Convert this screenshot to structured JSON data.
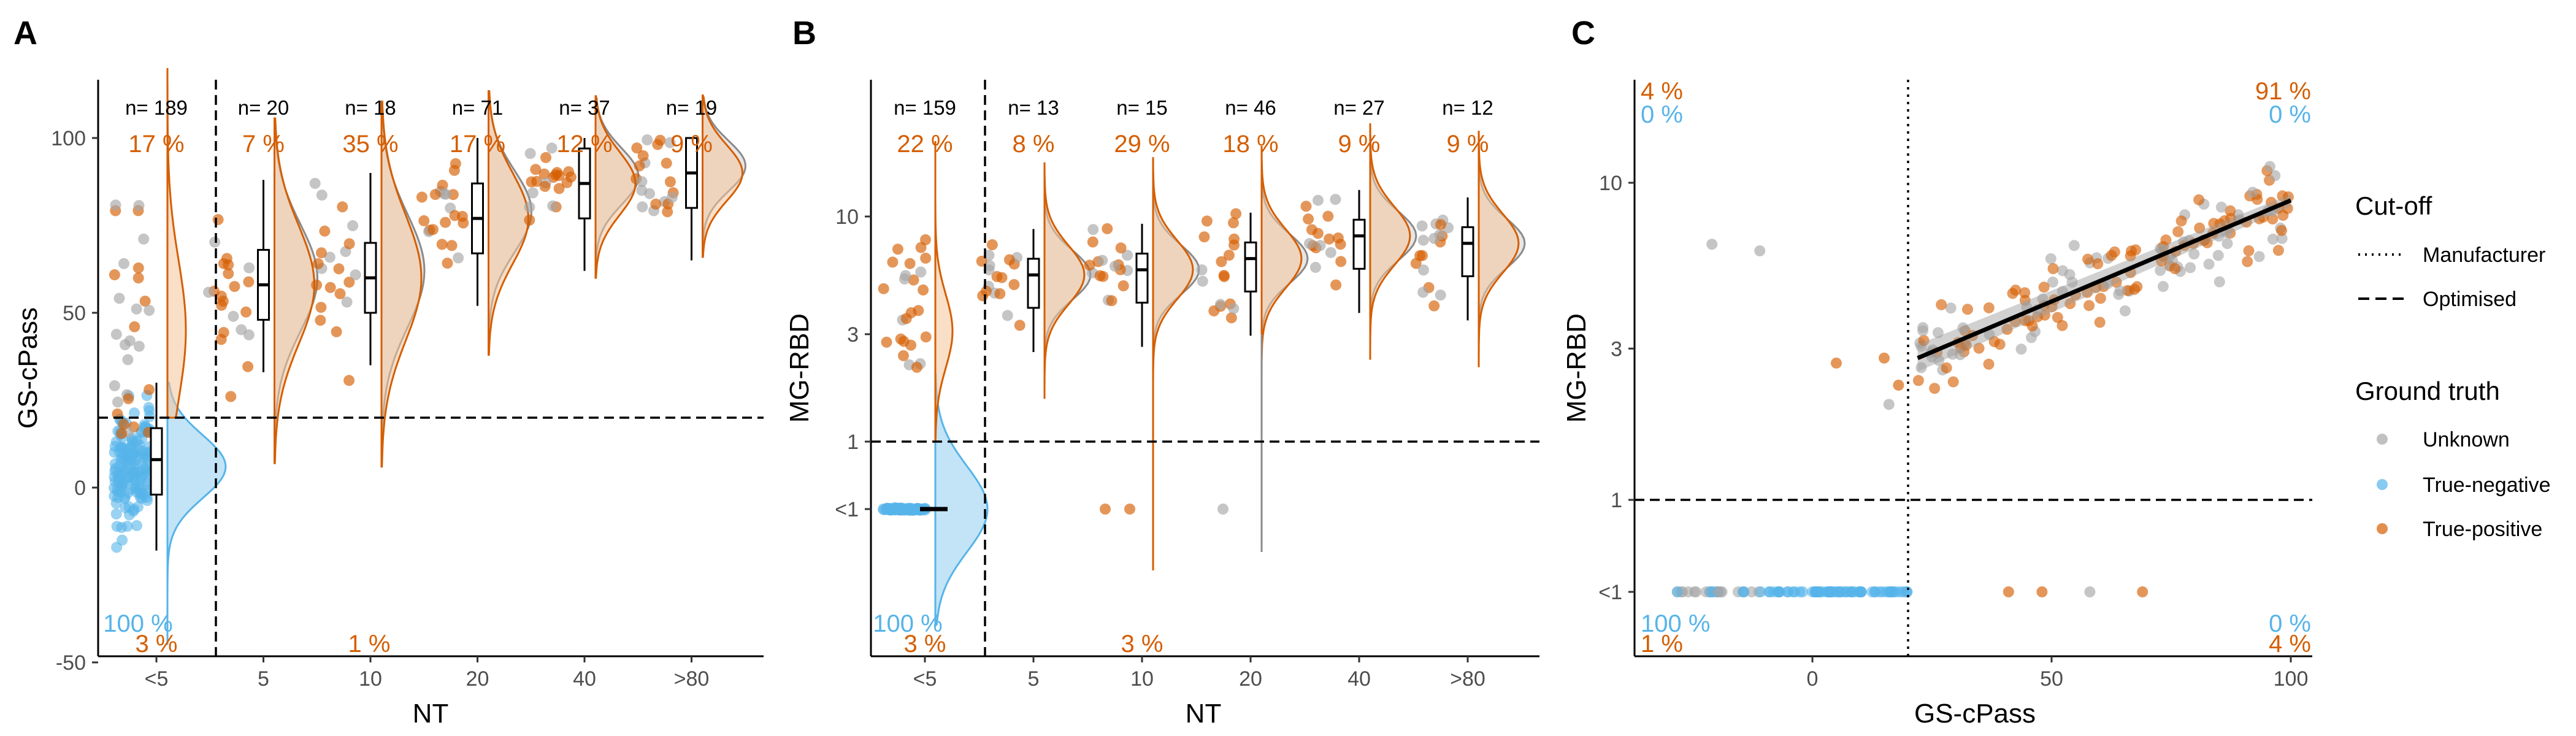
{
  "colors": {
    "unknown": "#a6a6a6",
    "true_negative": "#56b4e9",
    "true_positive": "#d55e00",
    "fill_orange": "#f4c49a",
    "fill_blue": "#a9d8f3",
    "fill_grey": "#d4d4d4"
  },
  "chart_data": [
    {
      "panel": "A",
      "type": "violin-box-scatter",
      "xlabel": "NT",
      "ylabel": "GS-cPass",
      "categories": [
        "<5",
        "5",
        "10",
        "20",
        "40",
        ">80"
      ],
      "yticks": [
        "100",
        "50",
        "0",
        "-50"
      ],
      "ylim": [
        -55,
        135
      ],
      "cutoff_optimised_y": 20,
      "cutoff_optimised_x_between": [
        "<5",
        "5"
      ],
      "n_labels": [
        "n= 189",
        "n= 20",
        "n= 18",
        "n= 71",
        "n= 37",
        "n= 19"
      ],
      "tp_percent_top": [
        "17 %",
        "7 %",
        "35 %",
        "17 %",
        "12 %",
        "9 %"
      ],
      "tn_percent_bottom": "100 %",
      "tp_percent_bottom": [
        "3 %",
        "1 %"
      ],
      "median": [
        8,
        58,
        60,
        77,
        87,
        90
      ]
    },
    {
      "panel": "B",
      "type": "violin-box-scatter",
      "xlabel": "NT",
      "ylabel": "MG-RBD",
      "categories": [
        "<5",
        "5",
        "10",
        "20",
        "40",
        ">80"
      ],
      "yticks": [
        "10",
        "3",
        "1",
        "<1"
      ],
      "yscale": "log",
      "cutoff_optimised_y": 1,
      "cutoff_optimised_x_between": [
        "<5",
        "5"
      ],
      "n_labels": [
        "n= 159",
        "n= 13",
        "n= 15",
        "n= 46",
        "n= 27",
        "n= 12"
      ],
      "tp_percent_top": [
        "22 %",
        "8 %",
        "29 %",
        "18 %",
        "9 %",
        "9 %"
      ],
      "tn_percent_bottom": "100 %",
      "tp_percent_bottom": [
        "3 %",
        "3 %"
      ],
      "median": [
        0.4,
        5.5,
        5.8,
        6.5,
        8.2,
        7.6
      ]
    },
    {
      "panel": "C",
      "type": "scatter",
      "xlabel": "GS-cPass",
      "ylabel": "MG-RBD",
      "xticks": [
        "0",
        "50",
        "100"
      ],
      "yticks": [
        "10",
        "3",
        "1",
        "<1"
      ],
      "xlim": [
        -37,
        105
      ],
      "yscale": "log",
      "cutoff_x": 20,
      "cutoff_y": 1,
      "quadrant_labels": {
        "top_left_tp": "4 %",
        "top_left_tn": "0 %",
        "top_right_tp": "91 %",
        "top_right_tn": "0 %",
        "bottom_left_tn": "100 %",
        "bottom_left_tp": "1 %",
        "bottom_right_tn": "0 %",
        "bottom_right_tp": "4 %"
      },
      "regression": {
        "x0": 22,
        "y0": 2.8,
        "x1": 100,
        "y1": 8.8
      }
    }
  ],
  "legend": {
    "cutoff_title": "Cut-off",
    "cutoff_items": [
      "Manufacturer",
      "Optimised"
    ],
    "truth_title": "Ground truth",
    "truth_items": [
      "Unknown",
      "True-negative",
      "True-positive"
    ]
  }
}
